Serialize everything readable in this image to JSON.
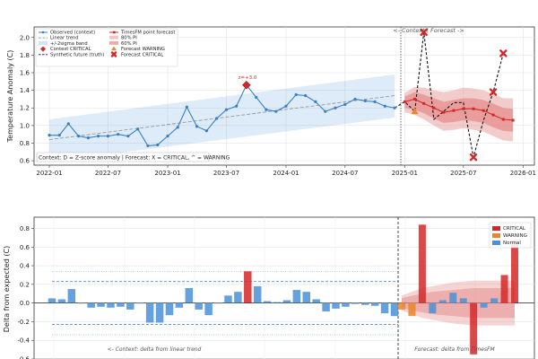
{
  "chart_data": [
    {
      "type": "line",
      "ylabel": "Temperature Anomaly (C)",
      "ylim": [
        0.55,
        2.12
      ],
      "yticks": [
        "0.6",
        "0.8",
        "1.0",
        "1.2",
        "1.4",
        "1.6",
        "1.8",
        "2.0"
      ],
      "xlim": [
        "2021-11-15",
        "2026-02-05"
      ],
      "xticks": [
        "2022-01",
        "2022-07",
        "2023-01",
        "2023-07",
        "2024-01",
        "2024-07",
        "2025-01",
        "2025-07",
        "2026-01"
      ],
      "grid": true,
      "legend": {
        "placement": "top-left",
        "entries": [
          "Observed (context)",
          "Linear trend",
          "+/-2sigma band",
          "Context CRITICAL",
          "Synthetic future (truth)",
          "TimesFM point forecast",
          "80% PI",
          "60% PI",
          "Forecast WARNING",
          "Forecast CRITICAL"
        ]
      },
      "context_split_label": "<- Context | Forecast ->",
      "critical_annotation": "z=+3.0",
      "context_note": "Context: D = Z-score anomaly | Forecast: X = CRITICAL, ^ = WARNING",
      "observed": {
        "x": [
          "2022-01",
          "2022-02",
          "2022-03",
          "2022-04",
          "2022-05",
          "2022-06",
          "2022-07",
          "2022-08",
          "2022-09",
          "2022-10",
          "2022-11",
          "2022-12",
          "2023-01",
          "2023-02",
          "2023-03",
          "2023-04",
          "2023-05",
          "2023-06",
          "2023-07",
          "2023-08",
          "2023-09",
          "2023-10",
          "2023-11",
          "2023-12",
          "2024-01",
          "2024-02",
          "2024-03",
          "2024-04",
          "2024-05",
          "2024-06",
          "2024-07",
          "2024-08",
          "2024-09",
          "2024-10",
          "2024-11",
          "2024-12"
        ],
        "y": [
          0.89,
          0.89,
          1.02,
          0.88,
          0.86,
          0.88,
          0.88,
          0.9,
          0.88,
          0.96,
          0.77,
          0.78,
          0.88,
          0.98,
          1.21,
          0.99,
          0.94,
          1.08,
          1.18,
          1.22,
          1.46,
          1.32,
          1.18,
          1.16,
          1.22,
          1.35,
          1.34,
          1.27,
          1.16,
          1.2,
          1.24,
          1.3,
          1.28,
          1.27,
          1.22,
          1.2
        ]
      },
      "trend": {
        "x": [
          "2022-01",
          "2024-12"
        ],
        "y": [
          0.84,
          1.34
        ]
      },
      "band": {
        "x": [
          "2022-01",
          "2024-12"
        ],
        "lower": [
          0.59,
          1.09
        ],
        "upper": [
          1.07,
          1.58
        ]
      },
      "context_critical": {
        "x": "2023-09",
        "y": 1.46
      },
      "truth": {
        "x": [
          "2024-12",
          "2025-01",
          "2025-02",
          "2025-03",
          "2025-04",
          "2025-05",
          "2025-06",
          "2025-07",
          "2025-08",
          "2025-09",
          "2025-10",
          "2025-11"
        ],
        "y": [
          1.2,
          1.27,
          1.16,
          2.06,
          1.07,
          1.16,
          1.26,
          1.26,
          0.64,
          1.06,
          1.38,
          1.82
        ]
      },
      "forecast": {
        "x": [
          "2025-01",
          "2025-02",
          "2025-03",
          "2025-04",
          "2025-05",
          "2025-06",
          "2025-07",
          "2025-08",
          "2025-09",
          "2025-10",
          "2025-11",
          "2025-12"
        ],
        "y": [
          1.27,
          1.3,
          1.25,
          1.2,
          1.15,
          1.17,
          1.19,
          1.19,
          1.17,
          1.12,
          1.07,
          1.06
        ],
        "pi80_lower": [
          1.15,
          1.12,
          1.07,
          1.0,
          0.94,
          0.95,
          0.97,
          0.95,
          0.93,
          0.88,
          0.83,
          0.82
        ],
        "pi80_upper": [
          1.37,
          1.44,
          1.43,
          1.4,
          1.38,
          1.4,
          1.43,
          1.42,
          1.4,
          1.36,
          1.31,
          1.31
        ],
        "pi60_lower": [
          1.2,
          1.18,
          1.14,
          1.08,
          1.03,
          1.04,
          1.06,
          1.05,
          1.03,
          0.98,
          0.94,
          0.93
        ],
        "pi60_upper": [
          1.33,
          1.38,
          1.35,
          1.31,
          1.27,
          1.29,
          1.31,
          1.31,
          1.29,
          1.25,
          1.2,
          1.19
        ]
      },
      "forecast_warning": [
        {
          "x": "2025-02",
          "y": 1.16
        }
      ],
      "forecast_critical": [
        {
          "x": "2025-03",
          "y": 2.06
        },
        {
          "x": "2025-08",
          "y": 0.64
        },
        {
          "x": "2025-10",
          "y": 1.38
        },
        {
          "x": "2025-11",
          "y": 1.82
        }
      ]
    },
    {
      "type": "bar",
      "ylabel": "Delta from expected (C)",
      "ylim": [
        -0.6,
        0.92
      ],
      "yticks": [
        "-0.6",
        "-0.4",
        "-0.2",
        "0.0",
        "0.2",
        "0.4",
        "0.6",
        "0.8"
      ],
      "grid": true,
      "legend": {
        "placement": "top-right",
        "entries": [
          "CRITICAL",
          "WARNING",
          "Normal"
        ]
      },
      "context_label": "<- Context: delta from linear trend",
      "forecast_label": "Forecast: delta from TimesFM",
      "context_deltas": [
        0.05,
        0.04,
        0.15,
        0.0,
        -0.05,
        -0.04,
        -0.05,
        -0.04,
        -0.07,
        0.0,
        -0.21,
        -0.21,
        -0.13,
        -0.05,
        0.16,
        -0.07,
        -0.13,
        0.0,
        0.08,
        0.12,
        0.34,
        0.18,
        0.02,
        0.01,
        0.03,
        0.14,
        0.12,
        0.04,
        -0.09,
        -0.06,
        -0.04,
        -0.01,
        -0.02,
        -0.03,
        -0.11,
        -0.14
      ],
      "context_status": [
        "normal",
        "normal",
        "normal",
        "normal",
        "normal",
        "normal",
        "normal",
        "normal",
        "normal",
        "normal",
        "normal",
        "normal",
        "normal",
        "normal",
        "normal",
        "normal",
        "normal",
        "normal",
        "normal",
        "normal",
        "critical",
        "normal",
        "normal",
        "normal",
        "normal",
        "normal",
        "normal",
        "normal",
        "normal",
        "normal",
        "normal",
        "normal",
        "normal",
        "normal",
        "normal",
        "normal"
      ],
      "context_levels": {
        "sigma1": 0.23,
        "sigma2": 0.34
      },
      "forecast_deltas": [
        -0.07,
        -0.14,
        0.84,
        -0.11,
        0.03,
        0.11,
        0.05,
        -0.55,
        -0.05,
        0.05,
        0.3,
        0.68
      ],
      "forecast_status": [
        "warning",
        "warning",
        "critical",
        "normal",
        "normal",
        "normal",
        "normal",
        "critical",
        "normal",
        "normal",
        "critical",
        "critical"
      ],
      "forecast_band": {
        "pi80_upper": [
          0.08,
          0.12,
          0.16,
          0.18,
          0.2,
          0.22,
          0.23,
          0.24,
          0.24,
          0.24,
          0.24,
          0.24
        ],
        "pi60_upper": [
          0.05,
          0.08,
          0.1,
          0.12,
          0.13,
          0.14,
          0.15,
          0.16,
          0.16,
          0.16,
          0.16,
          0.16
        ]
      },
      "colors": {
        "critical": "#d62728",
        "warning": "#e8862a",
        "normal": "#4a90d9"
      }
    }
  ]
}
